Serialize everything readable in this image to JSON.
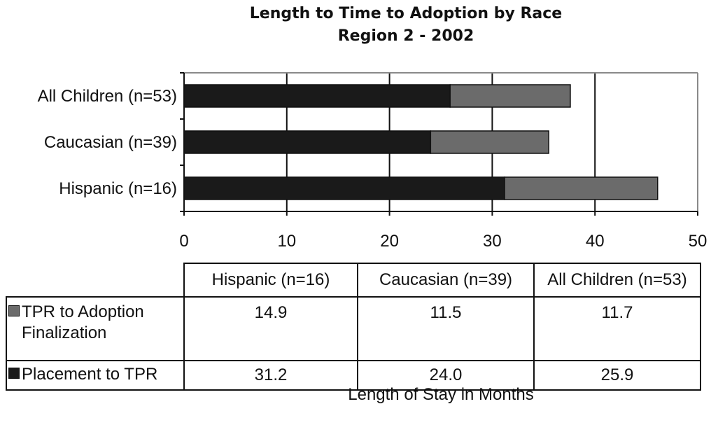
{
  "chart_data": {
    "type": "bar",
    "orientation": "horizontal",
    "stacked": true,
    "title": "Length to Time to Adoption by Race",
    "subtitle": "Region 2 - 2002",
    "categories": [
      "All Children (n=53)",
      "Caucasian (n=39)",
      "Hispanic (n=16)"
    ],
    "series": [
      {
        "name": "Placement to TPR",
        "values": [
          25.9,
          24.0,
          31.2
        ],
        "color": "#1a1a1a"
      },
      {
        "name": "TPR to Adoption Finalization",
        "values": [
          11.7,
          11.5,
          14.9
        ],
        "color": "#6b6b6b"
      }
    ],
    "xlim": [
      0,
      50
    ],
    "xticks": [
      "0",
      "10",
      "20",
      "30",
      "40",
      "50"
    ],
    "grid": "vertical",
    "xlabel": "Length of Stay in Months",
    "ylabel": "",
    "data_table": {
      "columns": [
        "Hispanic (n=16)",
        "Caucasian (n=39)",
        "All Children (n=53)"
      ],
      "rows": [
        {
          "label_line1": "TPR to Adoption",
          "label_line2": "Finalization",
          "values": [
            "14.9",
            "11.5",
            "11.7"
          ]
        },
        {
          "label_line1": "Placement to TPR",
          "label_line2": "",
          "values": [
            "31.2",
            "24.0",
            "25.9"
          ]
        }
      ]
    }
  }
}
